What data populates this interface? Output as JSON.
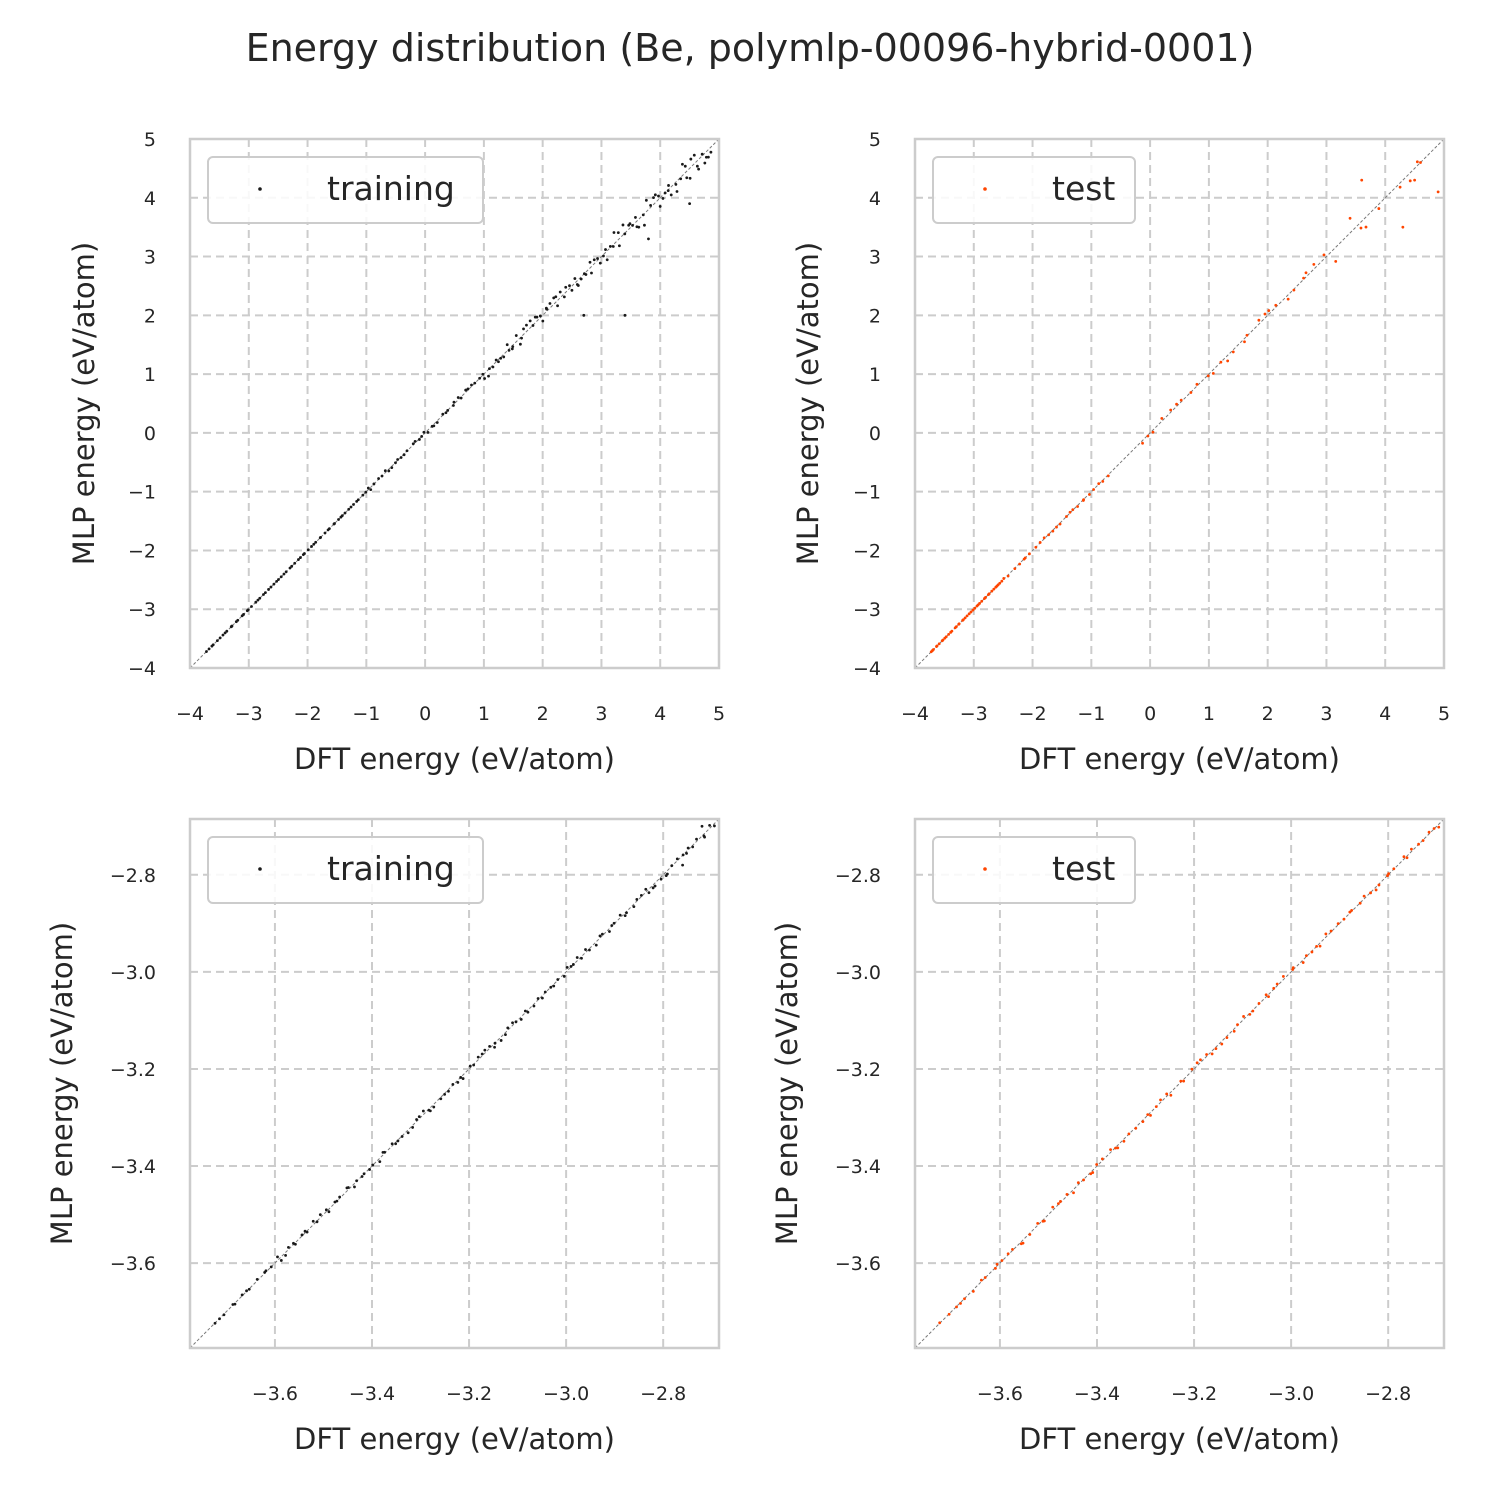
{
  "figure_title": "Energy distribution (Be, polymlp-00096-hybrid-0001)",
  "colors": {
    "training": "#1a1a1a",
    "test": "#ff4500",
    "grid": "#cccccc",
    "frame": "#cccccc",
    "diagonal": "#7a7a7a"
  },
  "chart_data": [
    {
      "type": "scatter",
      "panel": "top-left",
      "xlabel": "DFT energy (eV/atom)",
      "ylabel": "MLP energy (eV/atom)",
      "xlim": [
        -4,
        5
      ],
      "ylim": [
        -4,
        5
      ],
      "xticks": [
        -4,
        -3,
        -2,
        -1,
        0,
        1,
        2,
        3,
        4,
        5
      ],
      "yticks": [
        -4,
        -3,
        -2,
        -1,
        0,
        1,
        2,
        3,
        4,
        5
      ],
      "xtick_labels": [
        "−4",
        "−3",
        "−2",
        "−1",
        "0",
        "1",
        "2",
        "3",
        "4",
        "5"
      ],
      "ytick_labels": [
        "−4",
        "−3",
        "−2",
        "−1",
        "0",
        "1",
        "2",
        "3",
        "4",
        "5"
      ],
      "grid": true,
      "legend": {
        "label": "training",
        "location": "upper-left"
      },
      "series": [
        {
          "name": "training",
          "segments": [
            {
              "x0": -3.75,
              "x1": -1.0,
              "n": 60,
              "noise": 0.0
            },
            {
              "x0": -1.0,
              "x1": 1.0,
              "n": 35,
              "noise": 0.04
            },
            {
              "x0": 1.0,
              "x1": 3.0,
              "n": 45,
              "noise": 0.12
            },
            {
              "x0": 3.0,
              "x1": 4.9,
              "n": 45,
              "noise": 0.2
            }
          ],
          "outliers": [
            [
              2.7,
              2.0
            ],
            [
              3.4,
              2.0
            ],
            [
              4.5,
              3.9
            ],
            [
              3.8,
              3.3
            ]
          ]
        }
      ]
    },
    {
      "type": "scatter",
      "panel": "top-right",
      "xlabel": "DFT energy (eV/atom)",
      "ylabel": "MLP energy (eV/atom)",
      "xlim": [
        -4,
        5
      ],
      "ylim": [
        -4,
        5
      ],
      "xticks": [
        -4,
        -3,
        -2,
        -1,
        0,
        1,
        2,
        3,
        4,
        5
      ],
      "yticks": [
        -4,
        -3,
        -2,
        -1,
        0,
        1,
        2,
        3,
        4,
        5
      ],
      "xtick_labels": [
        "−4",
        "−3",
        "−2",
        "−1",
        "0",
        "1",
        "2",
        "3",
        "4",
        "5"
      ],
      "ytick_labels": [
        "−4",
        "−3",
        "−2",
        "−1",
        "0",
        "1",
        "2",
        "3",
        "4",
        "5"
      ],
      "grid": true,
      "legend": {
        "label": "test",
        "location": "upper-left"
      },
      "series": [
        {
          "name": "test",
          "segments": [
            {
              "x0": -3.75,
              "x1": -2.5,
              "n": 40,
              "noise": 0.0
            },
            {
              "x0": -2.5,
              "x1": -0.7,
              "n": 25,
              "noise": 0.02
            },
            {
              "x0": -0.2,
              "x1": 1.0,
              "n": 10,
              "noise": 0.05
            },
            {
              "x0": 1.0,
              "x1": 3.0,
              "n": 16,
              "noise": 0.1
            },
            {
              "x0": 3.0,
              "x1": 4.7,
              "n": 8,
              "noise": 0.25
            }
          ],
          "outliers": [
            [
              4.3,
              3.5
            ],
            [
              4.6,
              4.6
            ],
            [
              4.9,
              4.1
            ],
            [
              3.6,
              4.3
            ],
            [
              4.5,
              4.3
            ]
          ]
        }
      ]
    },
    {
      "type": "scatter",
      "panel": "bottom-left",
      "xlabel": "DFT energy (eV/atom)",
      "ylabel": "MLP energy (eV/atom)",
      "xlim": [
        -3.775,
        -2.685
      ],
      "ylim": [
        -3.775,
        -2.685
      ],
      "xticks": [
        -3.6,
        -3.4,
        -3.2,
        -3.0,
        -2.8
      ],
      "yticks": [
        -3.6,
        -3.4,
        -3.2,
        -3.0,
        -2.8
      ],
      "xtick_labels": [
        "−3.6",
        "−3.4",
        "−3.2",
        "−3.0",
        "−2.8"
      ],
      "ytick_labels": [
        "−3.6",
        "−3.4",
        "−3.2",
        "−3.0",
        "−2.8"
      ],
      "grid": true,
      "legend": {
        "label": "training",
        "location": "upper-left"
      },
      "series": [
        {
          "name": "training",
          "segments": [
            {
              "x0": -3.73,
              "x1": -3.62,
              "n": 10,
              "noise": 0.003
            },
            {
              "x0": -3.62,
              "x1": -2.69,
              "n": 110,
              "noise": 0.008
            }
          ],
          "outliers": [
            [
              -2.72,
              -2.7
            ],
            [
              -2.76,
              -2.78
            ]
          ]
        }
      ]
    },
    {
      "type": "scatter",
      "panel": "bottom-right",
      "xlabel": "DFT energy (eV/atom)",
      "ylabel": "MLP energy (eV/atom)",
      "xlim": [
        -3.775,
        -2.685
      ],
      "ylim": [
        -3.775,
        -2.685
      ],
      "xticks": [
        -3.6,
        -3.4,
        -3.2,
        -3.0,
        -2.8
      ],
      "yticks": [
        -3.6,
        -3.4,
        -3.2,
        -3.0,
        -2.8
      ],
      "xtick_labels": [
        "−3.6",
        "−3.4",
        "−3.2",
        "−3.0",
        "−2.8"
      ],
      "ytick_labels": [
        "−3.6",
        "−3.4",
        "−3.2",
        "−3.0",
        "−2.8"
      ],
      "grid": true,
      "legend": {
        "label": "test",
        "location": "upper-left"
      },
      "series": [
        {
          "name": "test",
          "segments": [
            {
              "x0": -3.73,
              "x1": -3.62,
              "n": 8,
              "noise": 0.004
            },
            {
              "x0": -3.62,
              "x1": -2.69,
              "n": 85,
              "noise": 0.007
            }
          ],
          "outliers": []
        }
      ]
    }
  ]
}
